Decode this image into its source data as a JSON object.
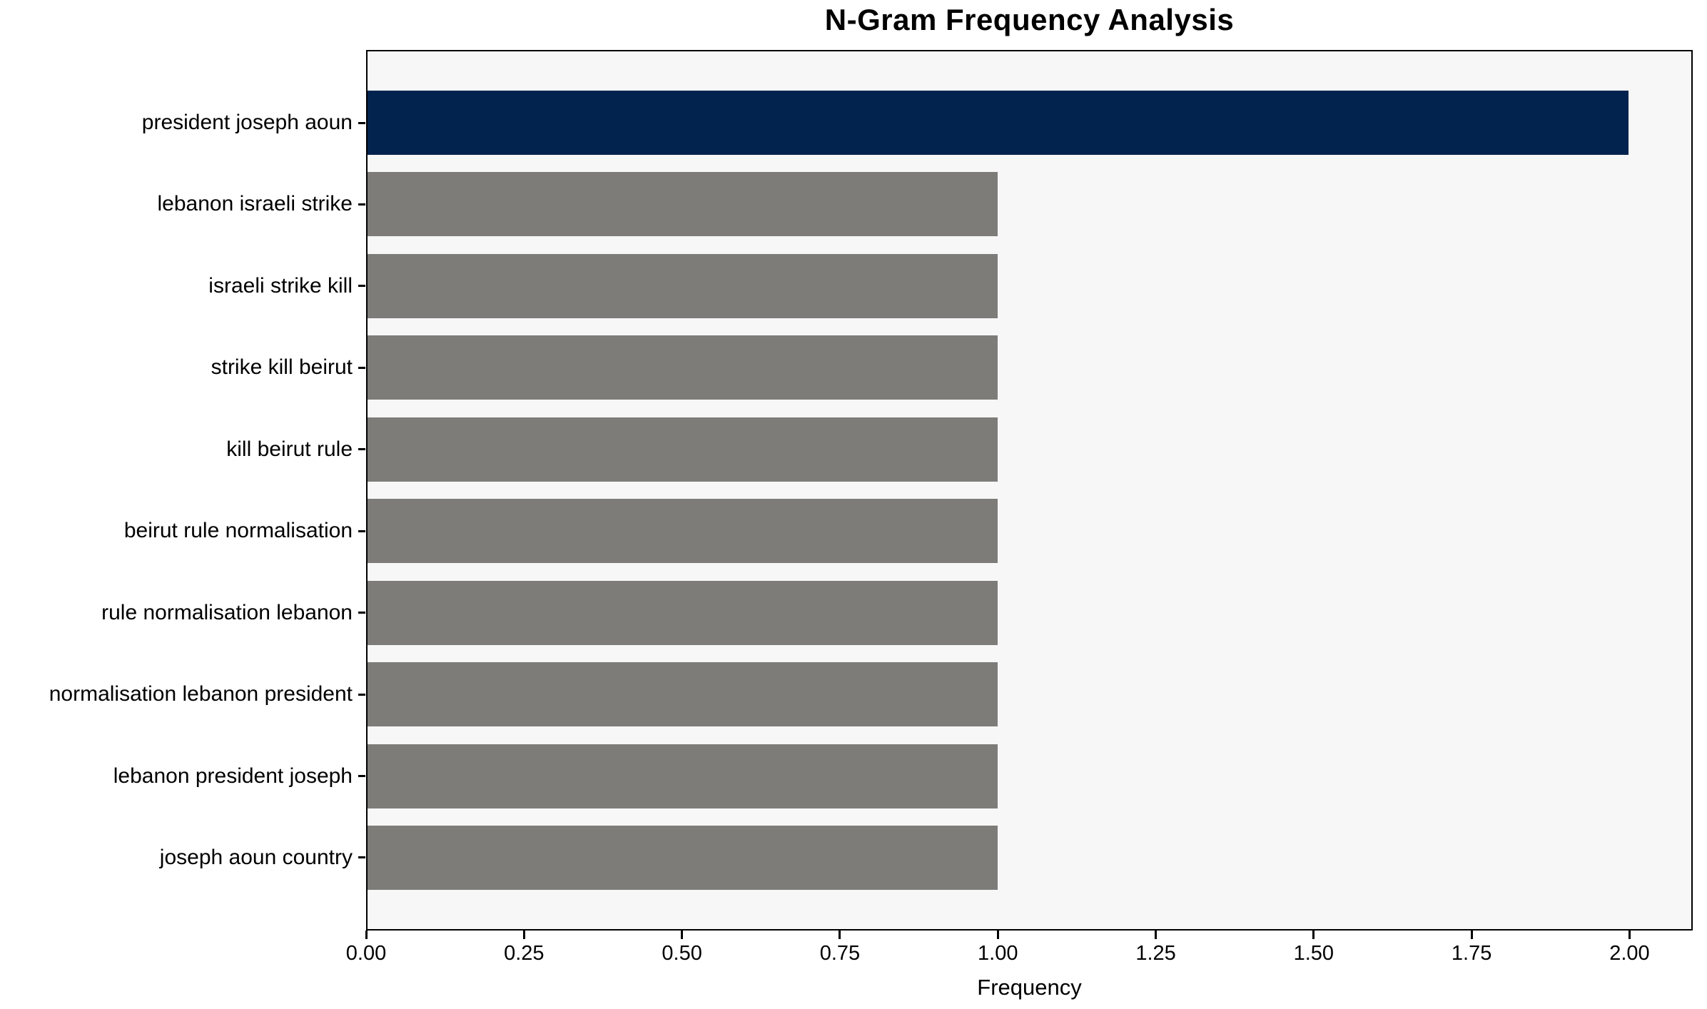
{
  "chart_data": {
    "type": "bar",
    "orientation": "horizontal",
    "title": "N-Gram Frequency Analysis",
    "xlabel": "Frequency",
    "ylabel": "",
    "categories": [
      "president joseph aoun",
      "lebanon israeli strike",
      "israeli strike kill",
      "strike kill beirut",
      "kill beirut rule",
      "beirut rule normalisation",
      "rule normalisation lebanon",
      "normalisation lebanon president",
      "lebanon president joseph",
      "joseph aoun country"
    ],
    "values": [
      2,
      1,
      1,
      1,
      1,
      1,
      1,
      1,
      1,
      1
    ],
    "bar_colors": [
      "#02234d",
      "#7d7c79",
      "#7d7c79",
      "#7d7c79",
      "#7d7c79",
      "#7d7c79",
      "#7d7c79",
      "#7d7c79",
      "#7d7c79",
      "#7d7c79"
    ],
    "xlim": [
      0,
      2.1
    ],
    "xticks": [
      {
        "value": 0,
        "label": "0.00"
      },
      {
        "value": 0.25,
        "label": "0.25"
      },
      {
        "value": 0.5,
        "label": "0.50"
      },
      {
        "value": 0.75,
        "label": "0.75"
      },
      {
        "value": 1,
        "label": "1.00"
      },
      {
        "value": 1.25,
        "label": "1.25"
      },
      {
        "value": 1.5,
        "label": "1.50"
      },
      {
        "value": 1.75,
        "label": "1.75"
      },
      {
        "value": 2,
        "label": "2.00"
      }
    ],
    "grid": false,
    "legend": null,
    "plot_background": "#f7f7f7",
    "frame_color": "#000000"
  }
}
